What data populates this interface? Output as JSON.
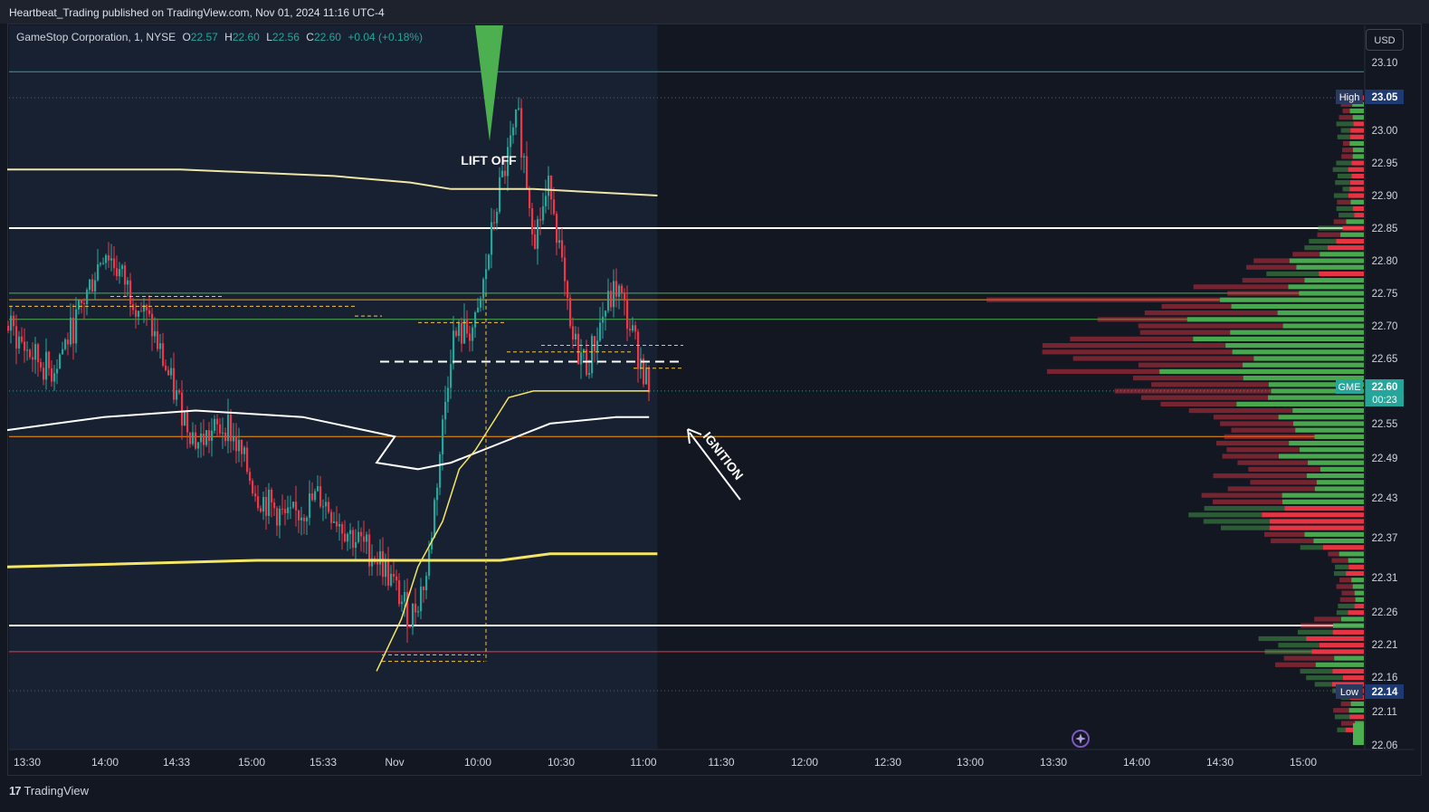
{
  "publisher_line": "Heartbeat_Trading published on TradingView.com, Nov 01, 2024 11:16 UTC-4",
  "legend": {
    "symbol": "GameStop Corporation, 1, NYSE",
    "o_label": "O",
    "o_value": "22.57",
    "h_label": "H",
    "h_value": "22.60",
    "l_label": "L",
    "l_value": "22.56",
    "c_label": "C",
    "c_value": "22.60",
    "change": "+0.04 (+0.18%)"
  },
  "currency_button": "USD",
  "brand": "TradingView",
  "colors": {
    "background": "#131722",
    "session_bg": "#182132",
    "up": "#26a69a",
    "down": "#f23645",
    "vp_up": "#4caf50",
    "vp_down": "#f23645",
    "white_line": "#ffffff",
    "yellow_line": "#f5e663",
    "orange_line": "#ff9800",
    "green_line": "#4caf50",
    "red_line": "#f23645"
  },
  "chart_data": {
    "type": "candlestick",
    "y_range": [
      22.06,
      23.1
    ],
    "y_ticks": [
      "23.10",
      "23.05",
      "23.00",
      "22.95",
      "22.90",
      "22.85",
      "22.80",
      "22.75",
      "22.70",
      "22.65",
      "22.60",
      "22.55",
      "22.49",
      "22.43",
      "22.37",
      "22.31",
      "22.26",
      "22.21",
      "22.16",
      "22.14",
      "22.11",
      "22.06"
    ],
    "x_ticks": [
      "13:30",
      "14:00",
      "14:33",
      "15:00",
      "15:33",
      "Nov",
      "10:00",
      "10:30",
      "11:00",
      "11:30",
      "12:00",
      "12:30",
      "13:00",
      "13:30",
      "14:00",
      "14:30",
      "15:00"
    ],
    "annotations": {
      "lift_off": "LIFT OFF",
      "ignition": "IGNITION"
    },
    "price_badges": {
      "high_label": "High",
      "high_value": "23.05",
      "low_label": "Low",
      "low_value": "22.14",
      "current_symbol": "GME",
      "current_value": "22.60",
      "countdown": "00:23"
    },
    "horizontal_levels": [
      {
        "price": 23.09,
        "color": "#26a69a"
      },
      {
        "price": 22.85,
        "color": "#ffffff"
      },
      {
        "price": 22.75,
        "color": "#4caf50"
      },
      {
        "price": 22.74,
        "color": "#ff9800"
      },
      {
        "price": 22.71,
        "color": "#4caf50"
      },
      {
        "price": 22.53,
        "color": "#ff9800"
      },
      {
        "price": 22.24,
        "color": "#ffffff"
      },
      {
        "price": 22.2,
        "color": "#f23645"
      }
    ],
    "path": [
      [
        13.37,
        22.7
      ],
      [
        13.5,
        22.66
      ],
      [
        13.65,
        22.63
      ],
      [
        13.8,
        22.7
      ],
      [
        14.0,
        22.82
      ],
      [
        14.15,
        22.76
      ],
      [
        14.3,
        22.7
      ],
      [
        14.45,
        22.6
      ],
      [
        14.6,
        22.52
      ],
      [
        14.8,
        22.55
      ],
      [
        15.0,
        22.44
      ],
      [
        15.2,
        22.4
      ],
      [
        15.4,
        22.44
      ],
      [
        15.6,
        22.38
      ],
      [
        15.8,
        22.34
      ],
      [
        16.0,
        22.25
      ],
      [
        9.55,
        22.17
      ],
      [
        9.65,
        22.45
      ],
      [
        9.75,
        22.25
      ],
      [
        9.85,
        22.32
      ],
      [
        10.0,
        22.68
      ],
      [
        10.15,
        22.7
      ],
      [
        10.28,
        22.9
      ],
      [
        10.4,
        23.02
      ],
      [
        10.5,
        22.84
      ],
      [
        10.6,
        22.92
      ],
      [
        10.72,
        22.68
      ],
      [
        10.82,
        22.64
      ],
      [
        10.92,
        22.72
      ],
      [
        11.0,
        22.76
      ],
      [
        11.1,
        22.68
      ],
      [
        11.2,
        22.6
      ]
    ],
    "vwap_white": [
      [
        13.37,
        22.54
      ],
      [
        14.0,
        22.56
      ],
      [
        14.6,
        22.57
      ],
      [
        15.3,
        22.56
      ],
      [
        15.9,
        22.53
      ],
      [
        9.55,
        22.49
      ],
      [
        9.8,
        22.48
      ],
      [
        10.0,
        22.49
      ],
      [
        10.3,
        22.52
      ],
      [
        10.6,
        22.55
      ],
      [
        11.0,
        22.56
      ],
      [
        11.2,
        22.56
      ]
    ],
    "upper_curve": [
      [
        13.37,
        22.94
      ],
      [
        14.5,
        22.94
      ],
      [
        15.5,
        22.93
      ],
      [
        16.0,
        22.92
      ],
      [
        10.0,
        22.91
      ],
      [
        10.5,
        22.91
      ],
      [
        11.25,
        22.9
      ]
    ],
    "lower_yellow": [
      [
        13.37,
        22.33
      ],
      [
        15.0,
        22.34
      ],
      [
        16.0,
        22.34
      ],
      [
        9.8,
        22.34
      ],
      [
        10.3,
        22.34
      ],
      [
        10.6,
        22.35
      ],
      [
        11.25,
        22.35
      ]
    ],
    "anchored_yellow": [
      [
        9.55,
        22.17
      ],
      [
        9.7,
        22.25
      ],
      [
        9.8,
        22.33
      ],
      [
        9.95,
        22.4
      ],
      [
        10.05,
        22.48
      ],
      [
        10.15,
        22.51
      ],
      [
        10.25,
        22.55
      ],
      [
        10.35,
        22.59
      ],
      [
        10.5,
        22.6
      ],
      [
        11.0,
        22.6
      ],
      [
        11.2,
        22.6
      ]
    ]
  }
}
